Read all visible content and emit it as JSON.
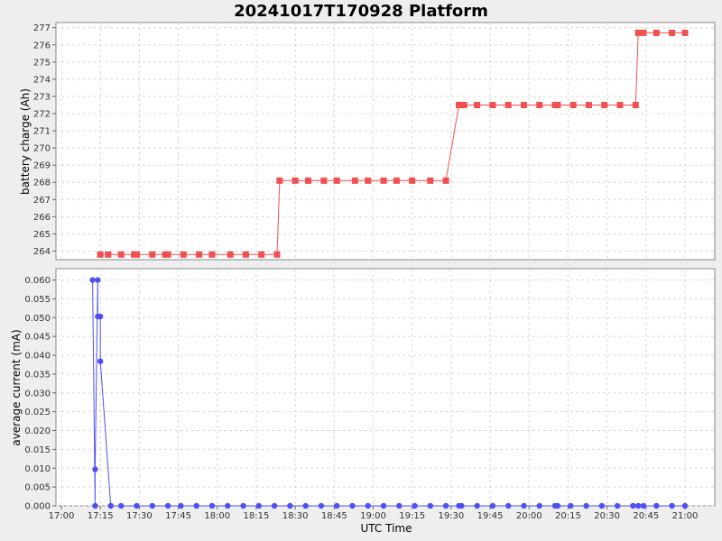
{
  "chart_data": [
    {
      "type": "line",
      "title": "20241017T170928 Platform",
      "xlabel": "",
      "ylabel": "battery charge (Ah)",
      "ylim": [
        263.5,
        277.3
      ],
      "yticks": [
        "264",
        "265",
        "266",
        "267",
        "268",
        "269",
        "270",
        "271",
        "272",
        "273",
        "274",
        "275",
        "276",
        "277"
      ],
      "grid": true,
      "color": "#f05050",
      "marker": "square",
      "series": [
        {
          "x": [
            "17:15",
            "17:18",
            "17:23",
            "17:28",
            "17:29",
            "17:35",
            "17:40",
            "17:41",
            "17:47",
            "17:53",
            "17:58",
            "18:05",
            "18:11",
            "18:17",
            "18:23",
            "18:24",
            "18:30",
            "18:35",
            "18:41",
            "18:46",
            "18:53",
            "18:58",
            "19:04",
            "19:09",
            "19:15",
            "19:22",
            "19:28",
            "19:33",
            "19:35",
            "19:40",
            "19:46",
            "19:52",
            "19:58",
            "20:04",
            "20:10",
            "20:11",
            "20:17",
            "20:23",
            "20:29",
            "20:35",
            "20:41",
            "20:42",
            "20:44",
            "20:49",
            "20:55",
            "21:00"
          ],
          "y": [
            263.8,
            263.8,
            263.8,
            263.8,
            263.8,
            263.8,
            263.8,
            263.8,
            263.8,
            263.8,
            263.8,
            263.8,
            263.8,
            263.8,
            263.8,
            268.1,
            268.1,
            268.1,
            268.1,
            268.1,
            268.1,
            268.1,
            268.1,
            268.1,
            268.1,
            268.1,
            268.1,
            272.5,
            272.5,
            272.5,
            272.5,
            272.5,
            272.5,
            272.5,
            272.5,
            272.5,
            272.5,
            272.5,
            272.5,
            272.5,
            272.5,
            276.7,
            276.7,
            276.7,
            276.7,
            276.7
          ]
        }
      ]
    },
    {
      "type": "line",
      "xlabel": "UTC Time",
      "ylabel": "average current (mA)",
      "ylim": [
        0,
        0.063
      ],
      "yticks": [
        "0.000",
        "0.005",
        "0.010",
        "0.015",
        "0.020",
        "0.025",
        "0.030",
        "0.035",
        "0.040",
        "0.045",
        "0.050",
        "0.055",
        "0.060"
      ],
      "xticks": [
        "17:00",
        "17:15",
        "17:30",
        "17:45",
        "18:00",
        "18:15",
        "18:30",
        "18:45",
        "19:00",
        "19:15",
        "19:30",
        "19:45",
        "20:00",
        "20:15",
        "20:30",
        "20:45",
        "21:00"
      ],
      "grid": true,
      "color": "#5050f0",
      "marker": "circle",
      "series": [
        {
          "x": [
            "17:12",
            "17:13",
            "17:13",
            "17:14",
            "17:14",
            "17:15",
            "17:15",
            "17:19",
            "17:23",
            "17:29",
            "17:35",
            "17:41",
            "17:46",
            "17:52",
            "17:58",
            "18:04",
            "18:10",
            "18:16",
            "18:22",
            "18:28",
            "18:34",
            "18:40",
            "18:46",
            "18:52",
            "18:58",
            "19:04",
            "19:10",
            "19:16",
            "19:22",
            "19:28",
            "19:33",
            "19:34",
            "19:40",
            "19:46",
            "19:52",
            "19:58",
            "20:04",
            "20:10",
            "20:11",
            "20:16",
            "20:22",
            "20:28",
            "20:34",
            "20:40",
            "20:42",
            "20:44",
            "20:49",
            "20:55",
            "21:00"
          ],
          "y": [
            0.06,
            0.0,
            0.0097,
            0.06,
            0.0503,
            0.0503,
            0.0384,
            0,
            0,
            0,
            0,
            0,
            0,
            0,
            0,
            0,
            0,
            0,
            0,
            0,
            0,
            0,
            0,
            0,
            0,
            0,
            0,
            0,
            0,
            0,
            0,
            0,
            0,
            0,
            0,
            0,
            0,
            0,
            0,
            0,
            0,
            0,
            0,
            0,
            0,
            0,
            0,
            0,
            0
          ]
        }
      ]
    }
  ]
}
